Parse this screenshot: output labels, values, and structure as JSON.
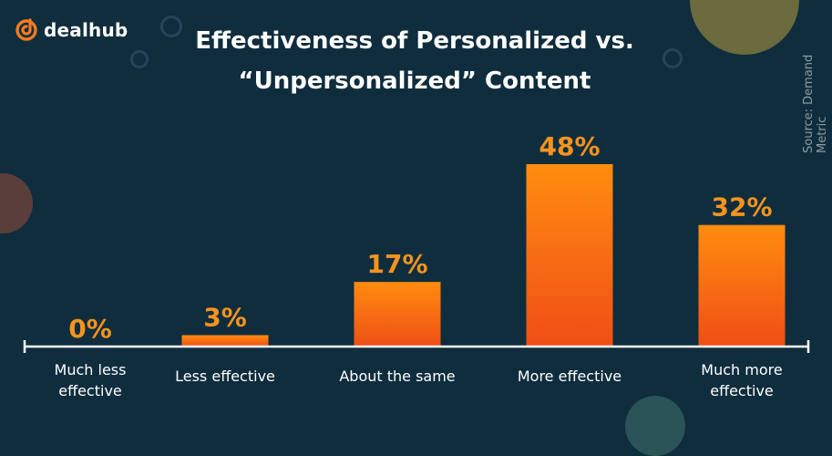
{
  "brand": {
    "logo_text": "dealhub",
    "accent": "#f47b20"
  },
  "header": {
    "title_line1": "Effectiveness of Personalized vs.",
    "title_line2": "“Unpersonalized” Content"
  },
  "source_note": "Source: Demand Metric",
  "colors": {
    "background": "#0f2d3d",
    "bar_top": "#ff8c0f",
    "bar_bottom": "#f04e16",
    "value_text": "#f7931e",
    "axis": "#ffffff"
  },
  "chart_data": {
    "type": "bar",
    "title": "Effectiveness of Personalized vs. “Unpersonalized” Content",
    "categories": [
      [
        "Much less",
        "effective"
      ],
      [
        "Less effective"
      ],
      [
        "About the same"
      ],
      [
        "More effective"
      ],
      [
        "Much more",
        "effective"
      ]
    ],
    "values": [
      0,
      3,
      17,
      48,
      32
    ],
    "value_labels": [
      "0%",
      "3%",
      "17%",
      "48%",
      "32%"
    ],
    "ylim": [
      0,
      48
    ],
    "grid": false,
    "legend": "none"
  }
}
